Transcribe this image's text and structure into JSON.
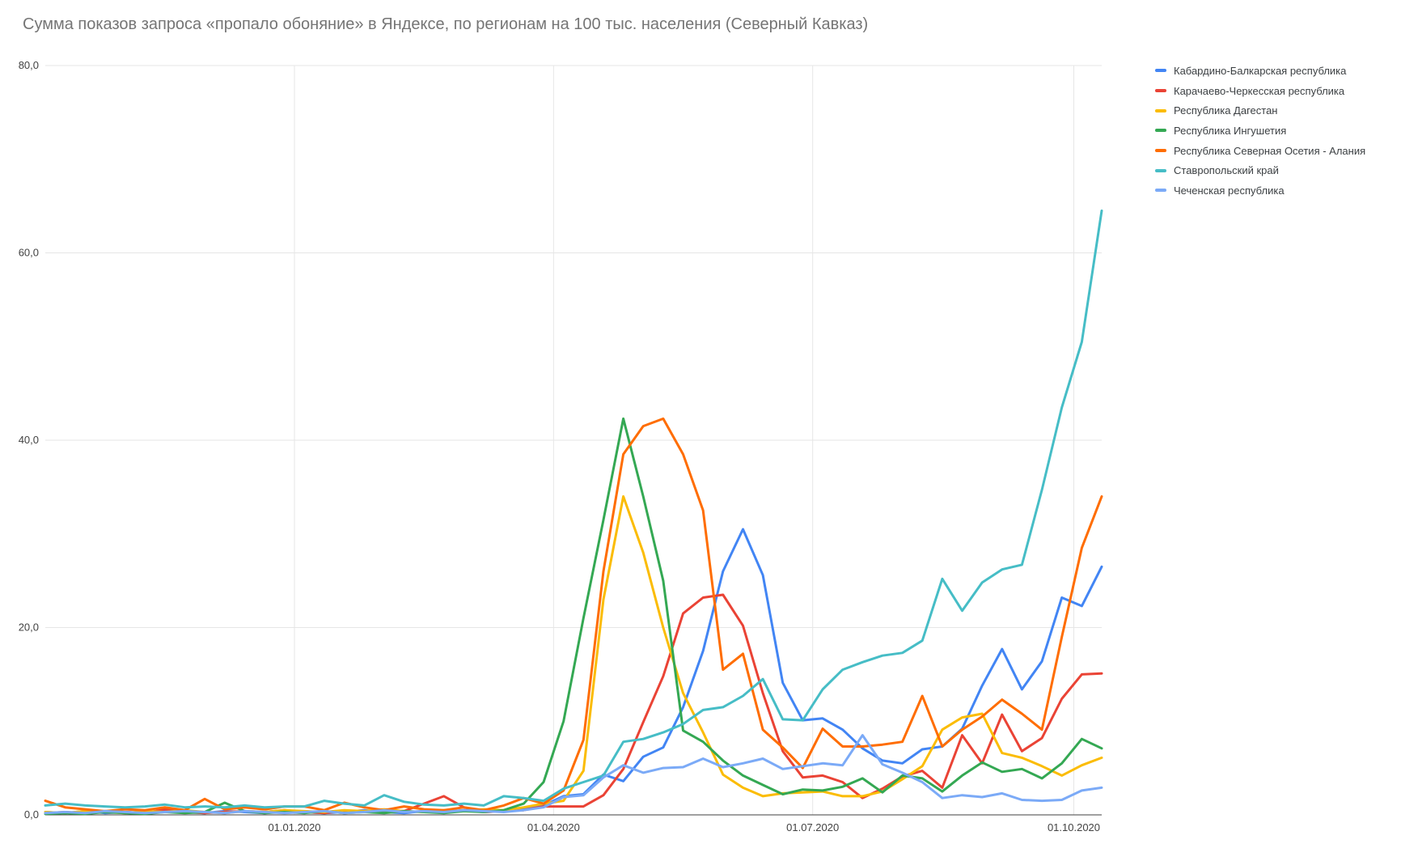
{
  "chart_data": {
    "type": "line",
    "title": "Сумма показов запроса «пропало обоняние» в Яндексе, по регионам на 100 тыс. населения (Северный Кавказ)",
    "x_unit": "weeks",
    "grid": true,
    "legend_position": "right",
    "ylim": [
      0,
      80
    ],
    "y_ticks": [
      {
        "label": "0,0",
        "value": 0
      },
      {
        "label": "20,0",
        "value": 20
      },
      {
        "label": "40,0",
        "value": 40
      },
      {
        "label": "60,0",
        "value": 60
      },
      {
        "label": "80,0",
        "value": 80
      }
    ],
    "x_ticks": [
      {
        "label": "01.01.2020",
        "week": 12.5
      },
      {
        "label": "01.04.2020",
        "week": 25.5
      },
      {
        "label": "01.07.2020",
        "week": 38.5
      },
      {
        "label": "01.10.2020",
        "week": 51.6
      }
    ],
    "colors": {
      "grid": "#e6e6e6",
      "baseline": "#424242",
      "title": "#757575",
      "tick_label": "#424242",
      "legend_label": "#3c4043"
    },
    "series": [
      {
        "name": "Кабардино-Балкарская республика",
        "color": "#4285F4",
        "values": [
          0.3,
          0.2,
          0.4,
          0.2,
          0.3,
          0.2,
          0.4,
          0.3,
          0.2,
          0.4,
          0.3,
          0.2,
          0.4,
          0.3,
          0.2,
          0.3,
          0.5,
          0.3,
          0.2,
          0.4,
          0.3,
          0.5,
          0.3,
          0.4,
          0.6,
          1.0,
          2.0,
          2.2,
          4.3,
          3.6,
          6.2,
          7.2,
          11.5,
          17.5,
          26.0,
          30.5,
          25.6,
          14.1,
          10.1,
          10.3,
          9.1,
          7.1,
          5.8,
          5.5,
          7.0,
          7.3,
          9.2,
          13.8,
          17.7,
          13.4,
          16.4,
          23.2,
          22.3,
          26.5
        ]
      },
      {
        "name": "Карачаево-Черкесская республика",
        "color": "#EA4335",
        "values": [
          0.2,
          0.3,
          0.2,
          0.4,
          0.3,
          0.2,
          0.6,
          0.3,
          0.2,
          0.3,
          0.4,
          0.3,
          0.5,
          0.3,
          0.2,
          0.4,
          0.3,
          0.5,
          0.4,
          1.2,
          2.0,
          0.8,
          0.3,
          0.4,
          0.5,
          0.9,
          0.9,
          0.9,
          2.1,
          4.9,
          9.9,
          14.8,
          21.5,
          23.2,
          23.5,
          20.2,
          13.0,
          6.8,
          4.0,
          4.2,
          3.5,
          1.8,
          2.8,
          4.1,
          4.7,
          2.9,
          8.5,
          5.5,
          10.7,
          6.8,
          8.2,
          12.4,
          15.0,
          15.1
        ]
      },
      {
        "name": "Республика Дагестан",
        "color": "#FBBC04",
        "values": [
          0.3,
          0.2,
          0.4,
          0.3,
          0.2,
          0.4,
          0.3,
          0.5,
          0.3,
          0.2,
          0.4,
          0.3,
          0.5,
          0.4,
          0.3,
          0.5,
          0.4,
          0.6,
          0.4,
          0.3,
          0.5,
          0.4,
          0.6,
          0.5,
          0.8,
          1.2,
          1.5,
          4.7,
          23.0,
          34.0,
          28.0,
          20.0,
          13.0,
          8.8,
          4.3,
          2.9,
          2.0,
          2.3,
          2.4,
          2.5,
          2.0,
          2.0,
          2.5,
          3.8,
          5.2,
          9.1,
          10.4,
          10.8,
          6.6,
          6.1,
          5.2,
          4.2,
          5.3,
          6.1
        ]
      },
      {
        "name": "Республика Ингушетия",
        "color": "#34A853",
        "values": [
          0.1,
          0.2,
          0.1,
          0.3,
          0.2,
          0.1,
          0.3,
          0.2,
          0.3,
          1.3,
          0.4,
          0.2,
          0.3,
          0.2,
          0.4,
          0.2,
          0.3,
          0.2,
          0.4,
          0.3,
          0.2,
          0.4,
          0.3,
          0.5,
          1.2,
          3.5,
          10.0,
          21.0,
          31.5,
          42.3,
          34.0,
          25.0,
          9.0,
          7.8,
          5.8,
          4.2,
          3.2,
          2.2,
          2.7,
          2.6,
          3.0,
          3.9,
          2.4,
          4.2,
          3.9,
          2.5,
          4.2,
          5.6,
          4.6,
          4.9,
          3.9,
          5.5,
          8.1,
          7.1
        ]
      },
      {
        "name": "Республика Северная Осетия - Алания",
        "color": "#FF6D01",
        "values": [
          1.5,
          0.8,
          0.6,
          0.4,
          0.6,
          0.5,
          0.8,
          0.5,
          1.7,
          0.6,
          0.8,
          0.6,
          0.9,
          0.9,
          0.5,
          1.3,
          0.8,
          0.5,
          0.9,
          0.6,
          0.5,
          0.8,
          0.5,
          1.0,
          1.8,
          1.2,
          2.6,
          8.0,
          26.0,
          38.5,
          41.5,
          42.3,
          38.5,
          32.5,
          15.5,
          17.2,
          9.1,
          7.2,
          5.0,
          9.2,
          7.3,
          7.3,
          7.5,
          7.8,
          12.7,
          7.3,
          9.1,
          10.5,
          12.3,
          10.8,
          9.1,
          19.0,
          28.5,
          34.0
        ]
      },
      {
        "name": "Ставропольский край",
        "color": "#46BDC6",
        "values": [
          1.0,
          1.2,
          1.0,
          0.9,
          0.8,
          0.9,
          1.1,
          0.8,
          0.9,
          0.8,
          1.0,
          0.8,
          0.9,
          0.9,
          1.5,
          1.2,
          1.0,
          2.1,
          1.4,
          1.1,
          1.0,
          1.2,
          1.0,
          2.0,
          1.8,
          1.5,
          2.8,
          3.5,
          4.2,
          7.8,
          8.1,
          8.8,
          9.7,
          11.2,
          11.5,
          12.7,
          14.5,
          10.2,
          10.1,
          13.4,
          15.5,
          16.3,
          17.0,
          17.3,
          18.6,
          25.2,
          21.8,
          24.8,
          26.2,
          26.7,
          34.7,
          43.5,
          50.5,
          64.5
        ]
      },
      {
        "name": "Чеченская республика",
        "color": "#7BAAF7",
        "values": [
          0.2,
          0.3,
          0.2,
          0.4,
          0.3,
          0.2,
          0.3,
          0.4,
          0.3,
          0.2,
          0.4,
          0.3,
          0.2,
          0.3,
          0.4,
          0.2,
          0.3,
          0.5,
          0.3,
          0.4,
          0.3,
          0.5,
          0.4,
          0.3,
          0.5,
          0.8,
          1.9,
          2.1,
          4.0,
          5.3,
          4.5,
          5.0,
          5.1,
          6.0,
          5.1,
          5.5,
          6.0,
          4.9,
          5.2,
          5.5,
          5.3,
          8.5,
          5.4,
          4.5,
          3.5,
          1.8,
          2.1,
          1.9,
          2.3,
          1.6,
          1.5,
          1.6,
          2.6,
          2.9
        ]
      }
    ]
  }
}
